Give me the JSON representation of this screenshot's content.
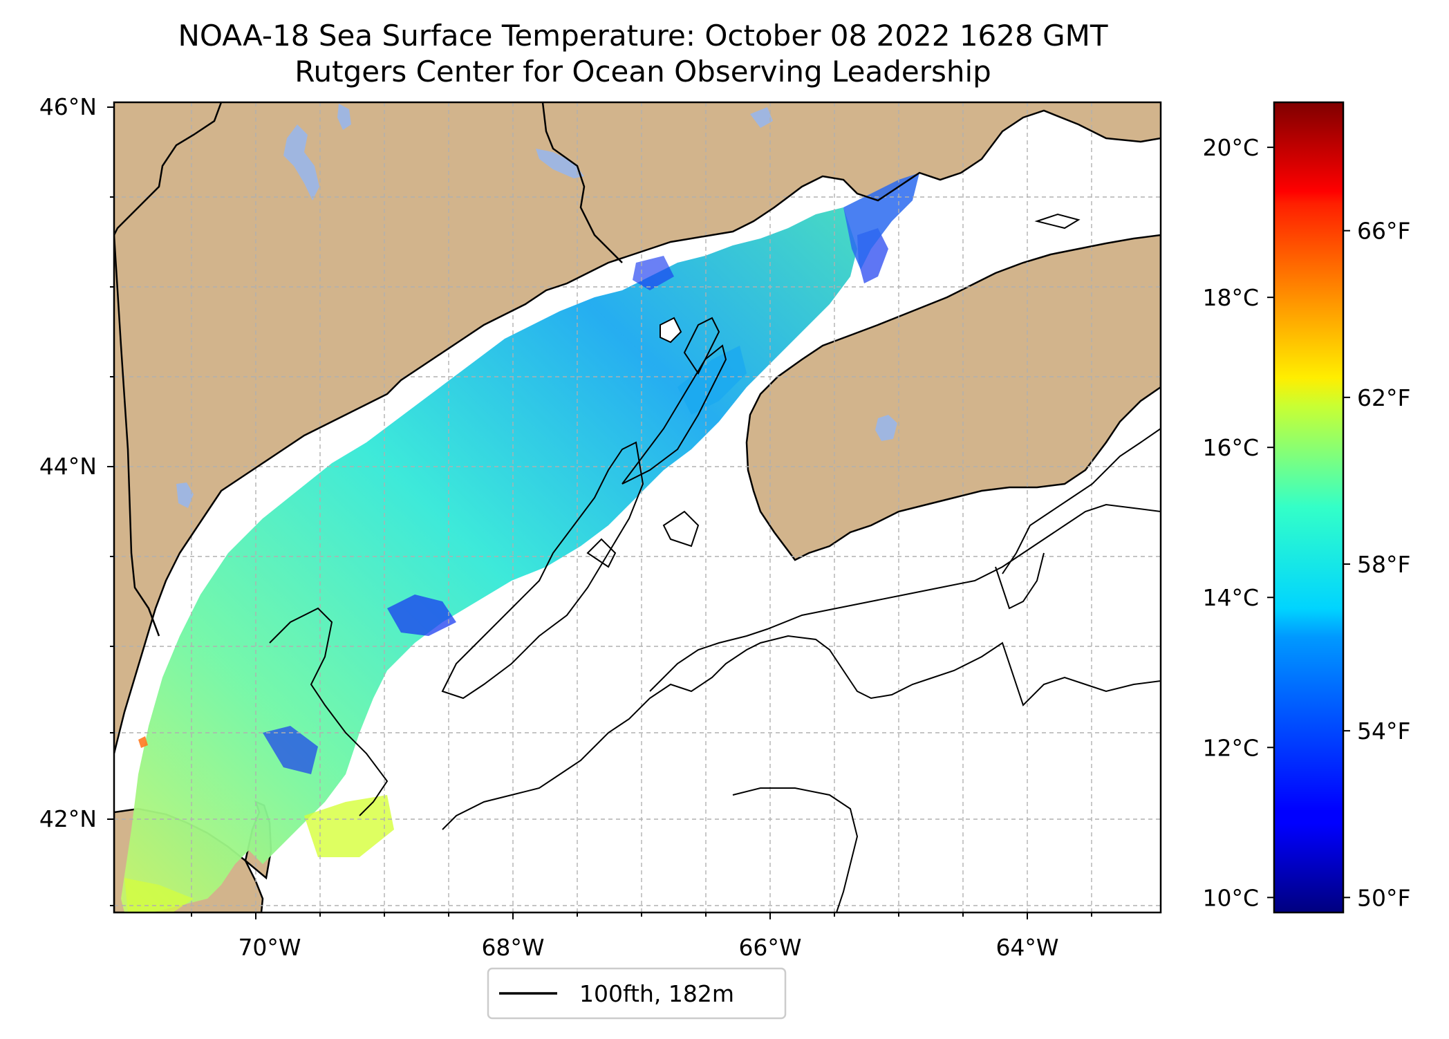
{
  "title_line1": "NOAA-18 Sea Surface Temperature: October 08 2022 1628 GMT",
  "title_line2": "Rutgers Center for Ocean Observing Leadership",
  "map": {
    "lat_labels": [
      "46°N",
      "44°N",
      "42°N"
    ],
    "lon_labels": [
      "70°W",
      "68°W",
      "66°W",
      "64°W"
    ],
    "land_color": "#d2b48c",
    "lake_color": "#9fb6e0",
    "coast_color": "#000000",
    "grid_color": "#b0b0b0"
  },
  "legend": {
    "label": "100fth, 182m"
  },
  "colorbar": {
    "colormap": "jet",
    "celsius_labels": [
      "20°C",
      "18°C",
      "16°C",
      "14°C",
      "12°C",
      "10°C"
    ],
    "fahrenheit_labels": [
      "66°F",
      "62°F",
      "58°F",
      "54°F",
      "50°F"
    ],
    "celsius_values": [
      20,
      18,
      16,
      14,
      12,
      10
    ],
    "fahrenheit_values": [
      66,
      62,
      58,
      54,
      50
    ],
    "range_c": [
      9.8,
      20.6
    ]
  }
}
